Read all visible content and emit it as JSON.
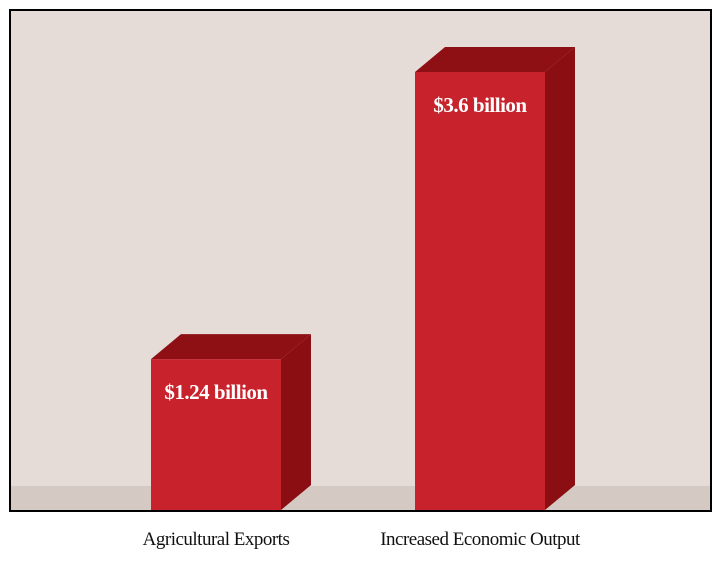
{
  "chart_data": {
    "type": "bar3d",
    "categories": [
      "Agricultural Exports",
      "Increased Economic Output"
    ],
    "values": [
      1.24,
      3.6
    ],
    "value_labels": [
      "$1.24 billion",
      "$3.6 billion"
    ],
    "color": "#c8232c"
  }
}
